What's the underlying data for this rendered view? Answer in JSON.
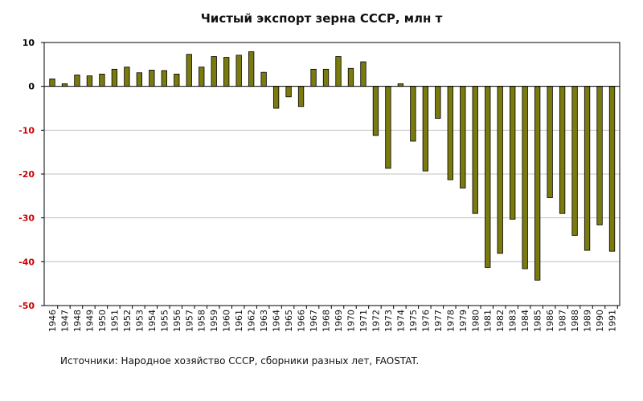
{
  "chart_data": {
    "type": "bar",
    "title": "Чистый экспорт зерна СССР, млн т",
    "xlabel": "",
    "ylabel": "",
    "ylim": [
      -50,
      10
    ],
    "yticks": [
      10,
      0,
      -10,
      -20,
      -30,
      -40,
      -50
    ],
    "grid": true,
    "legend": "none",
    "categories": [
      "1946",
      "1947",
      "1948",
      "1949",
      "1950",
      "1951",
      "1952",
      "1953",
      "1954",
      "1955",
      "1956",
      "1957",
      "1958",
      "1959",
      "1960",
      "1961",
      "1962",
      "1963",
      "1964",
      "1965",
      "1966",
      "1967",
      "1968",
      "1969",
      "1970",
      "1971",
      "1972",
      "1973",
      "1974",
      "1975",
      "1976",
      "1977",
      "1978",
      "1979",
      "1980",
      "1981",
      "1982",
      "1983",
      "1984",
      "1985",
      "1986",
      "1987",
      "1988",
      "1989",
      "1990",
      "1991"
    ],
    "values": [
      1.7,
      0.6,
      2.6,
      2.4,
      2.8,
      3.9,
      4.4,
      3.1,
      3.7,
      3.6,
      2.8,
      7.3,
      4.4,
      6.8,
      6.6,
      7.1,
      7.9,
      3.2,
      -5.0,
      -2.4,
      -4.6,
      3.9,
      3.9,
      6.8,
      4.1,
      5.6,
      -11.2,
      -18.7,
      0.6,
      -12.5,
      -19.3,
      -7.3,
      -21.3,
      -23.2,
      -29.0,
      -41.3,
      -38.1,
      -30.3,
      -41.6,
      -44.2,
      -25.4,
      -29.0,
      -34.0,
      -37.4,
      -31.6,
      -37.6
    ],
    "colors": {
      "bar_fill": "#7a7a0f",
      "bar_stroke": "#000000",
      "y_tick_positive": "#000000",
      "y_tick_negative": "#cc0000",
      "grid": "#c0c0c0"
    }
  },
  "source": "Источники: Народное хозяйство СССР, сборники разных лет, FAOSTAT."
}
